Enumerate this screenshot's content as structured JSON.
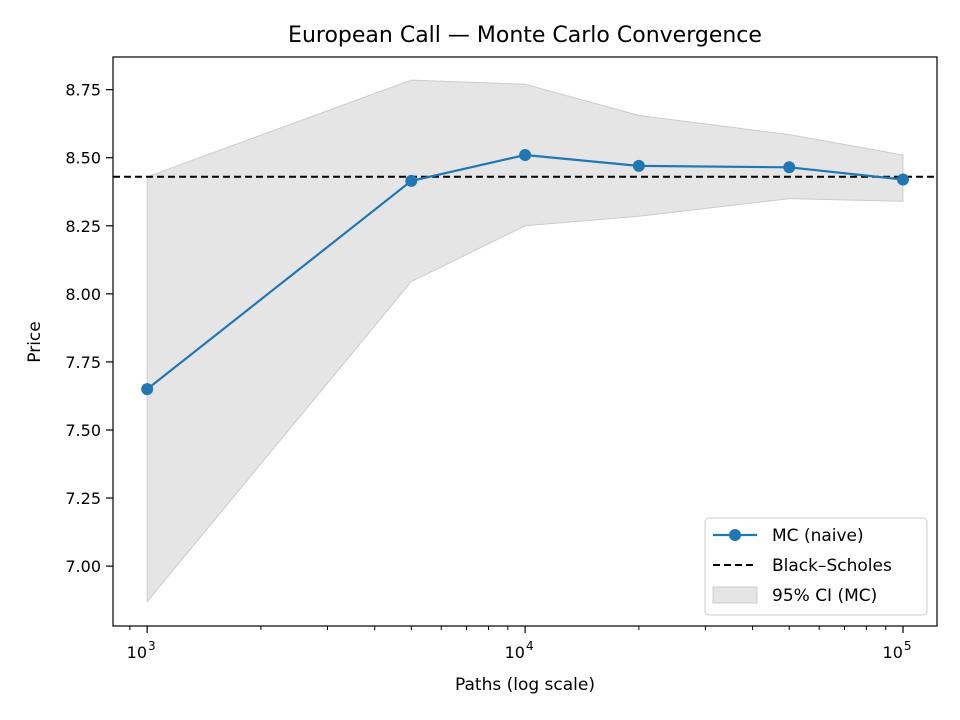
{
  "chart_data": {
    "type": "line",
    "title": "European Call — Monte Carlo Convergence",
    "xlabel": "Paths (log scale)",
    "ylabel": "Price",
    "xscale": "log",
    "xlim": [
      812,
      123000
    ],
    "ylim": [
      6.78,
      8.87
    ],
    "x_ticks": [
      {
        "value": 1000,
        "base": "10",
        "exp": "3"
      },
      {
        "value": 10000,
        "base": "10",
        "exp": "4"
      },
      {
        "value": 100000,
        "base": "10",
        "exp": "5"
      }
    ],
    "y_ticks": [
      "7.00",
      "7.25",
      "7.50",
      "7.75",
      "8.00",
      "8.25",
      "8.50",
      "8.75"
    ],
    "grid": false,
    "legend_position": "lower-right",
    "series": [
      {
        "name": "MC (naive)",
        "kind": "line-marker",
        "color": "#1f77b4",
        "x": [
          1000,
          5000,
          10000,
          20000,
          50000,
          100000
        ],
        "y": [
          7.65,
          8.415,
          8.51,
          8.47,
          8.465,
          8.42
        ]
      },
      {
        "name": "Black–Scholes",
        "kind": "hline",
        "color": "#000000",
        "y": 8.43
      },
      {
        "name": "95% CI (MC)",
        "kind": "band",
        "color": "#cccccc",
        "x": [
          1000,
          5000,
          10000,
          20000,
          50000,
          100000
        ],
        "lower": [
          6.87,
          8.045,
          8.25,
          8.285,
          8.35,
          8.34
        ],
        "upper": [
          8.43,
          8.785,
          8.77,
          8.655,
          8.585,
          8.51
        ]
      }
    ]
  }
}
